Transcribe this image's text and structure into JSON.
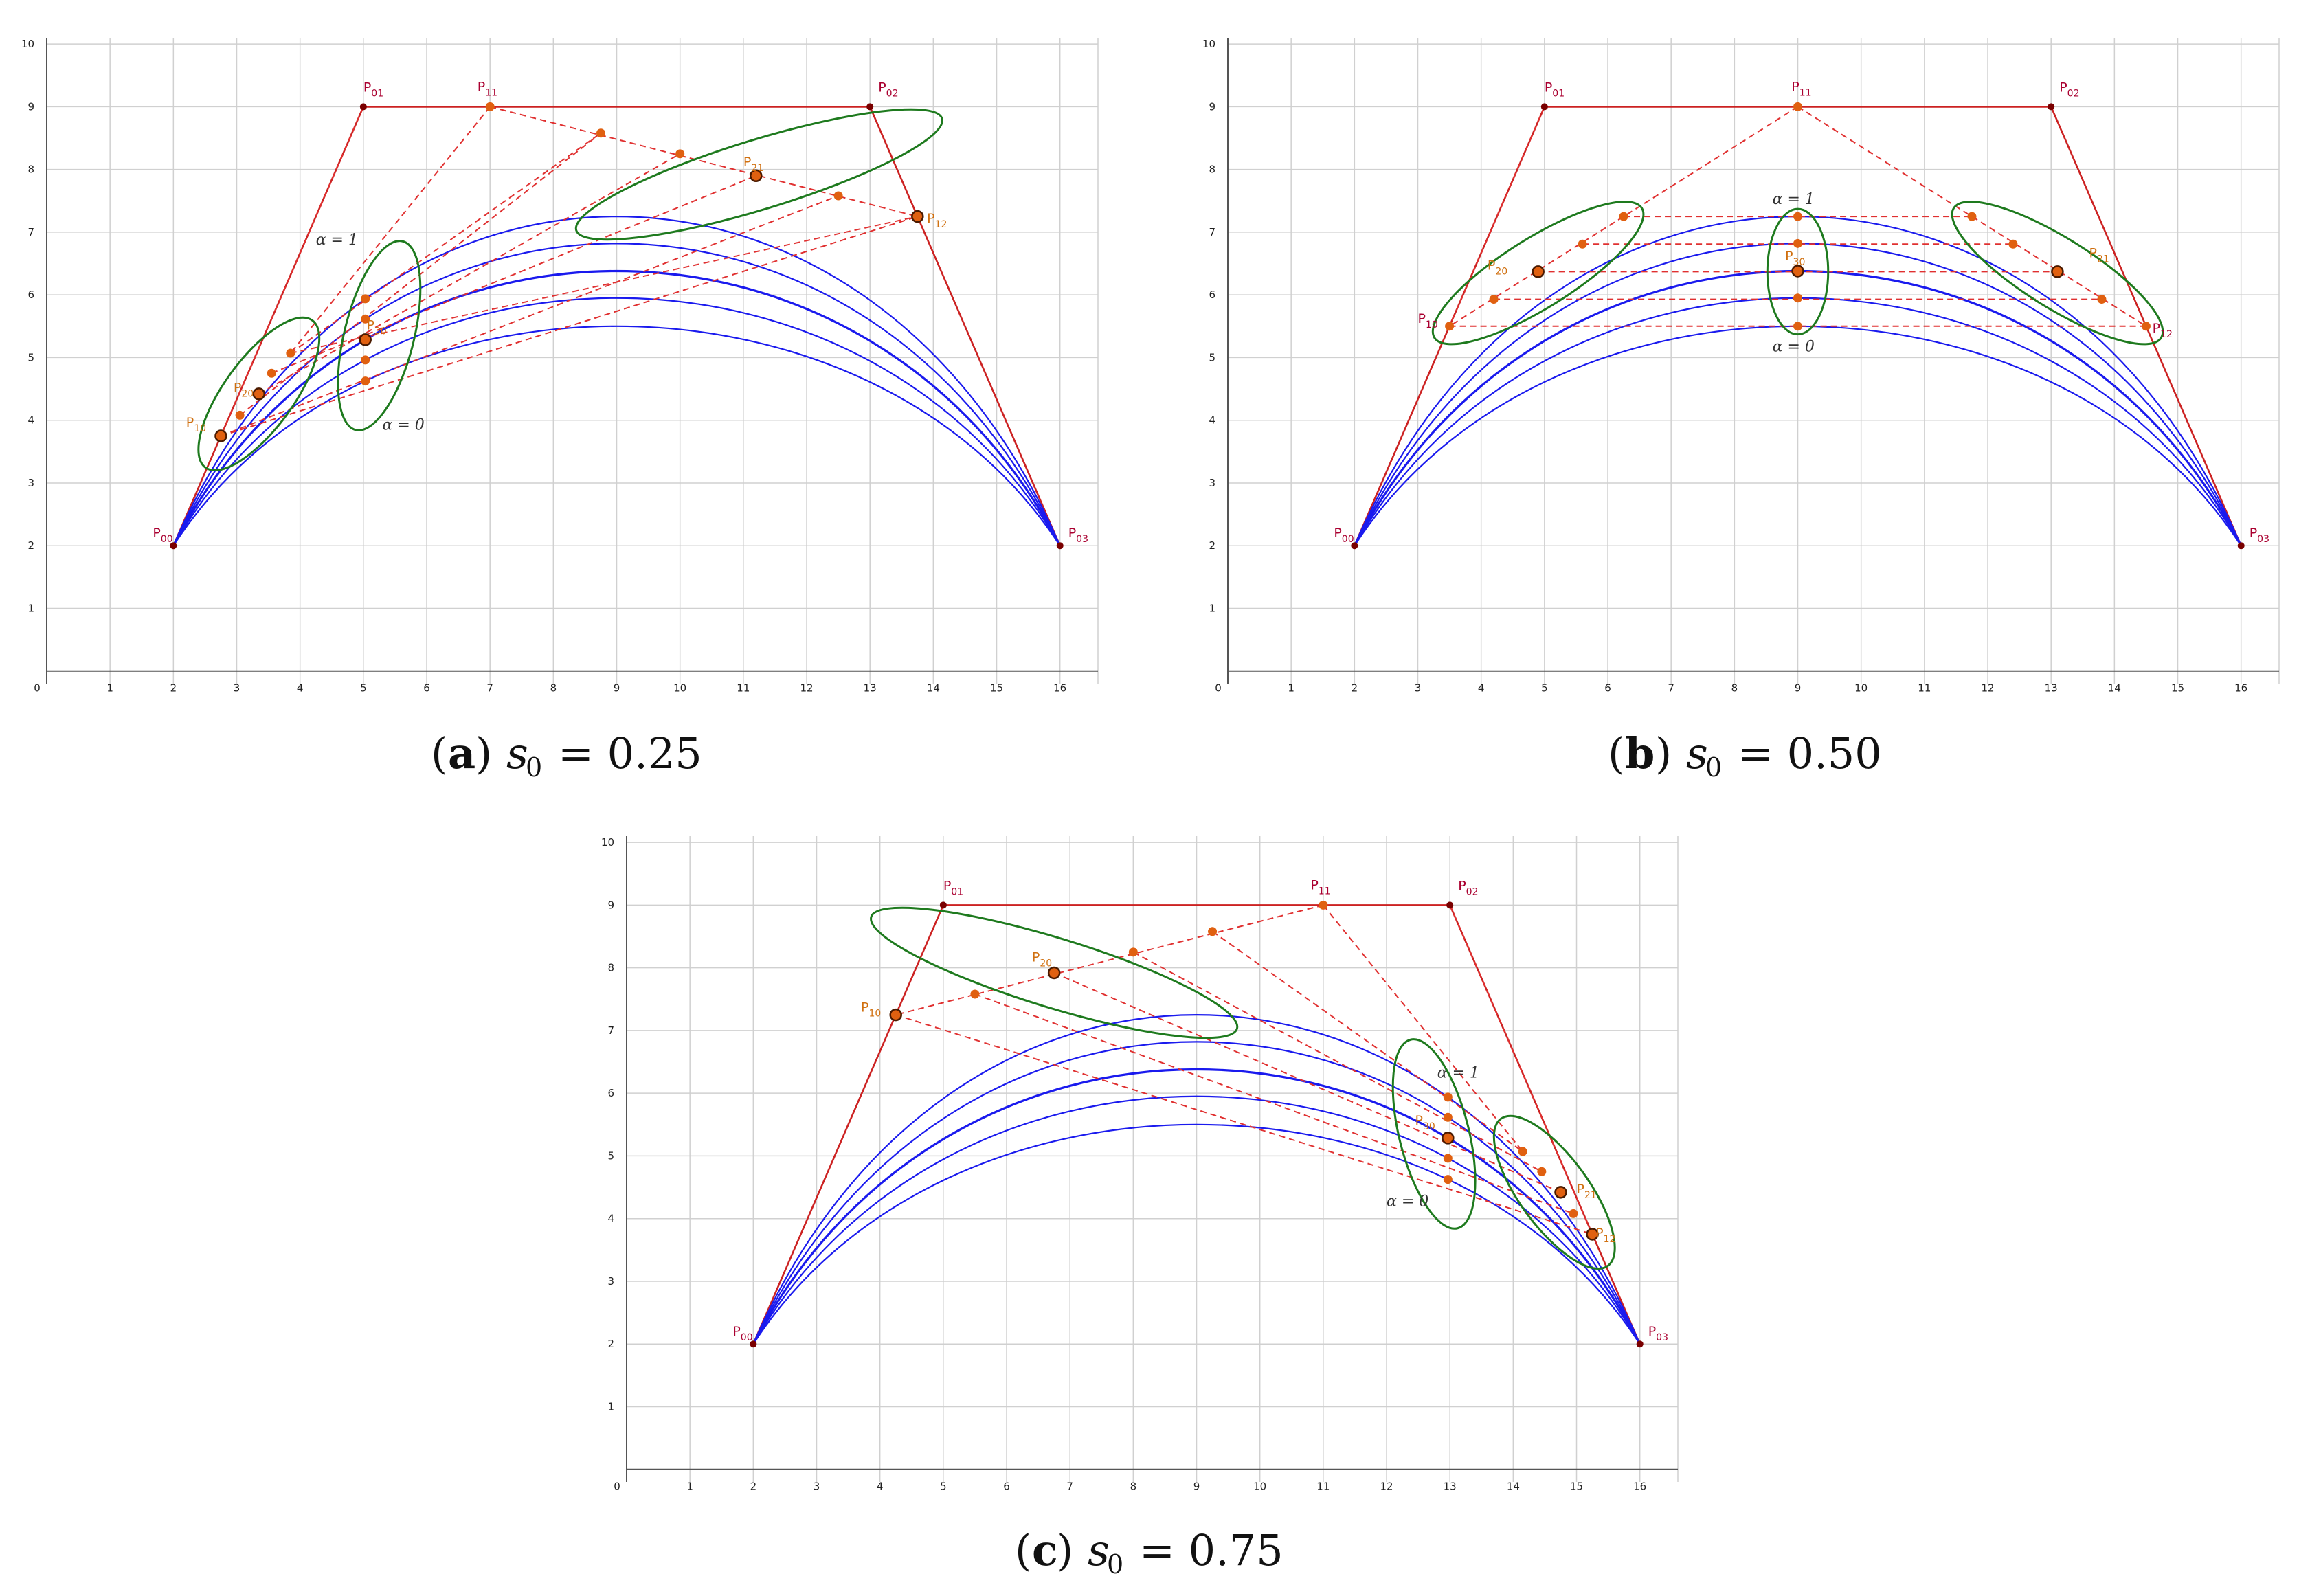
{
  "figure": {
    "panels": [
      {
        "id": "a",
        "caption": {
          "letter": "a",
          "var": "s",
          "sub": "0",
          "eq": "= 0.25"
        }
      },
      {
        "id": "b",
        "caption": {
          "letter": "b",
          "var": "s",
          "sub": "0",
          "eq": "= 0.50"
        }
      },
      {
        "id": "c",
        "caption": {
          "letter": "c",
          "var": "s",
          "sub": "0",
          "eq": "= 0.75"
        }
      }
    ]
  },
  "colors": {
    "grid": "#d0d0d0",
    "control": "#cc2222",
    "dashed": "#e03030",
    "curve": "#1a1aee",
    "point_fill": "#e06010",
    "vertex": "#7a0000",
    "ellipse": "#1e7a1e",
    "label": "#aa0030",
    "orange_label": "#d07010"
  },
  "chart_data": [
    {
      "type": "line",
      "panel": "a",
      "title": "(a) s0 = 0.25",
      "xlim": [
        0,
        16.6
      ],
      "ylim": [
        -0.2,
        10.1
      ],
      "xticks": [
        0,
        1,
        2,
        3,
        4,
        5,
        6,
        7,
        8,
        9,
        10,
        11,
        12,
        13,
        14,
        15,
        16
      ],
      "yticks": [
        1,
        2,
        3,
        4,
        5,
        6,
        7,
        8,
        9,
        10
      ],
      "control_points": [
        {
          "name": "P00",
          "sub": "00",
          "x": 2,
          "y": 2
        },
        {
          "name": "P01",
          "sub": "01",
          "x": 5,
          "y": 9
        },
        {
          "name": "P02",
          "sub": "02",
          "x": 13,
          "y": 9
        },
        {
          "name": "P03",
          "sub": "03",
          "x": 16,
          "y": 2
        }
      ],
      "alpha_values": [
        0,
        0.25,
        0.5,
        0.75,
        1
      ],
      "s0": 0.25,
      "alpha_labels": {
        "top": "α = 1",
        "bottom": "α = 0"
      },
      "point_labels": [
        {
          "key": "P11",
          "sub": "11",
          "at": "P11_1"
        },
        {
          "key": "P12",
          "sub": "12",
          "at": "P12_1"
        },
        {
          "key": "P10",
          "sub": "10",
          "at": "P10_0"
        },
        {
          "key": "P20",
          "sub": "20",
          "at": "P20_0"
        },
        {
          "key": "P21",
          "sub": "21",
          "at": "P21_0"
        },
        {
          "key": "P30",
          "sub": "30",
          "at": "P30_0"
        }
      ],
      "ellipses": [
        "P10",
        "P30",
        "P21"
      ]
    },
    {
      "type": "line",
      "panel": "b",
      "title": "(b) s0 = 0.50",
      "xlim": [
        0,
        16.6
      ],
      "ylim": [
        -0.2,
        10.1
      ],
      "xticks": [
        0,
        1,
        2,
        3,
        4,
        5,
        6,
        7,
        8,
        9,
        10,
        11,
        12,
        13,
        14,
        15,
        16
      ],
      "yticks": [
        1,
        2,
        3,
        4,
        5,
        6,
        7,
        8,
        9,
        10
      ],
      "control_points": [
        {
          "name": "P00",
          "sub": "00",
          "x": 2,
          "y": 2
        },
        {
          "name": "P01",
          "sub": "01",
          "x": 5,
          "y": 9
        },
        {
          "name": "P02",
          "sub": "02",
          "x": 13,
          "y": 9
        },
        {
          "name": "P03",
          "sub": "03",
          "x": 16,
          "y": 2
        }
      ],
      "alpha_values": [
        0,
        0.25,
        0.5,
        0.75,
        1
      ],
      "s0": 0.5,
      "alpha_labels": {
        "top": "α = 1",
        "bottom": "α = 0"
      },
      "point_labels": [
        {
          "key": "P11",
          "sub": "11",
          "at": "P11_1"
        },
        {
          "key": "P10",
          "sub": "10",
          "at": "P10_0"
        },
        {
          "key": "P12",
          "sub": "12",
          "at": "P12_0"
        },
        {
          "key": "P20",
          "sub": "20",
          "at": "P20_0"
        },
        {
          "key": "P21",
          "sub": "21",
          "at": "P21_0"
        },
        {
          "key": "P30",
          "sub": "30",
          "at": "P30_0"
        }
      ],
      "ellipses": [
        "P20",
        "P30",
        "P21"
      ]
    },
    {
      "type": "line",
      "panel": "c",
      "title": "(c) s0 = 0.75",
      "xlim": [
        0,
        16.6
      ],
      "ylim": [
        -0.2,
        10.1
      ],
      "xticks": [
        0,
        1,
        2,
        3,
        4,
        5,
        6,
        7,
        8,
        9,
        10,
        11,
        12,
        13,
        14,
        15,
        16
      ],
      "yticks": [
        1,
        2,
        3,
        4,
        5,
        6,
        7,
        8,
        9,
        10
      ],
      "control_points": [
        {
          "name": "P00",
          "sub": "00",
          "x": 2,
          "y": 2
        },
        {
          "name": "P01",
          "sub": "01",
          "x": 5,
          "y": 9
        },
        {
          "name": "P02",
          "sub": "02",
          "x": 13,
          "y": 9
        },
        {
          "name": "P03",
          "sub": "03",
          "x": 16,
          "y": 2
        }
      ],
      "alpha_values": [
        0,
        0.25,
        0.5,
        0.75,
        1
      ],
      "s0": 0.75,
      "alpha_labels": {
        "top": "α = 1",
        "bottom": "α = 0"
      },
      "point_labels": [
        {
          "key": "P11",
          "sub": "11",
          "at": "P11_1"
        },
        {
          "key": "P10",
          "sub": "10",
          "at": "P10_0"
        },
        {
          "key": "P20",
          "sub": "20",
          "at": "P20_0"
        },
        {
          "key": "P21",
          "sub": "21",
          "at": "P21_0"
        },
        {
          "key": "P12",
          "sub": "12",
          "at": "P12_0"
        },
        {
          "key": "P30",
          "sub": "30",
          "at": "P30_0"
        }
      ],
      "ellipses": [
        "P20",
        "P30",
        "P21"
      ]
    }
  ]
}
